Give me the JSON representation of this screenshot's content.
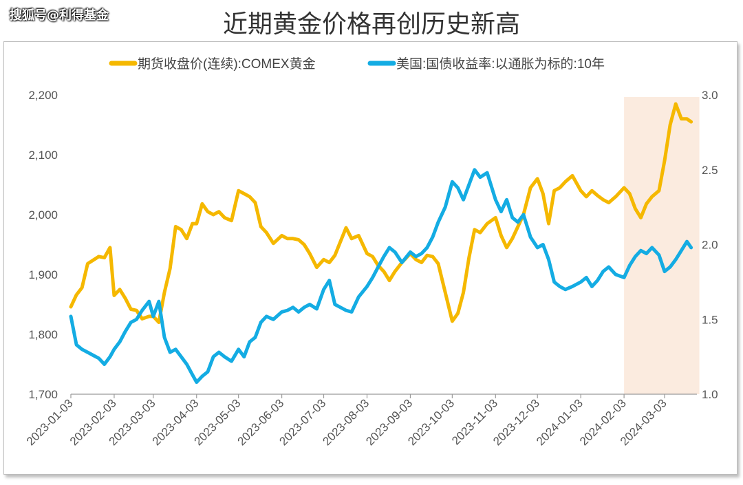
{
  "watermark": "搜狐号@利得基金",
  "title": "近期黄金价格再创历史新高",
  "colors": {
    "gold": "#F5B800",
    "yield": "#14ACE3",
    "highlight": "#FBEBDF",
    "axis": "#555555"
  },
  "chart_data": {
    "type": "line",
    "legend_position": "top",
    "grid": false,
    "x_ticks": [
      "2023-01-03",
      "2023-02-03",
      "2023-03-03",
      "2023-04-03",
      "2023-05-03",
      "2023-06-03",
      "2023-07-03",
      "2023-08-03",
      "2023-09-03",
      "2023-10-03",
      "2023-11-03",
      "2023-12-03",
      "2024-01-03",
      "2024-02-03",
      "2024-03-03"
    ],
    "y_left": {
      "ticks": [
        "1,700",
        "1,800",
        "1,900",
        "2,000",
        "2,100",
        "2,200"
      ],
      "lim": [
        1700,
        2200
      ]
    },
    "y_right": {
      "ticks": [
        "1.0",
        "1.5",
        "2.0",
        "2.5",
        "3.0"
      ],
      "lim": [
        1.0,
        3.0
      ]
    },
    "highlight_range": [
      "2024-02-03",
      "2024-03-22"
    ],
    "series": [
      {
        "name": "期货收盘价(连续):COMEX黄金",
        "axis": "left",
        "points": [
          [
            "2023-01-03",
            1846
          ],
          [
            "2023-01-07",
            1866
          ],
          [
            "2023-01-11",
            1878
          ],
          [
            "2023-01-15",
            1918
          ],
          [
            "2023-01-19",
            1924
          ],
          [
            "2023-01-23",
            1930
          ],
          [
            "2023-01-27",
            1928
          ],
          [
            "2023-01-31",
            1945
          ],
          [
            "2023-02-03",
            1865
          ],
          [
            "2023-02-07",
            1875
          ],
          [
            "2023-02-11",
            1860
          ],
          [
            "2023-02-15",
            1842
          ],
          [
            "2023-02-19",
            1840
          ],
          [
            "2023-02-23",
            1826
          ],
          [
            "2023-02-28",
            1830
          ],
          [
            "2023-03-03",
            1830
          ],
          [
            "2023-03-07",
            1820
          ],
          [
            "2023-03-11",
            1870
          ],
          [
            "2023-03-15",
            1910
          ],
          [
            "2023-03-19",
            1980
          ],
          [
            "2023-03-23",
            1975
          ],
          [
            "2023-03-27",
            1960
          ],
          [
            "2023-03-31",
            1985
          ],
          [
            "2023-04-03",
            1985
          ],
          [
            "2023-04-07",
            2018
          ],
          [
            "2023-04-11",
            2005
          ],
          [
            "2023-04-15",
            2000
          ],
          [
            "2023-04-19",
            2005
          ],
          [
            "2023-04-23",
            1995
          ],
          [
            "2023-04-28",
            1990
          ],
          [
            "2023-05-03",
            2040
          ],
          [
            "2023-05-07",
            2035
          ],
          [
            "2023-05-11",
            2030
          ],
          [
            "2023-05-15",
            2020
          ],
          [
            "2023-05-19",
            1980
          ],
          [
            "2023-05-23",
            1970
          ],
          [
            "2023-05-28",
            1952
          ],
          [
            "2023-06-03",
            1965
          ],
          [
            "2023-06-07",
            1960
          ],
          [
            "2023-06-11",
            1960
          ],
          [
            "2023-06-15",
            1958
          ],
          [
            "2023-06-19",
            1950
          ],
          [
            "2023-06-23",
            1935
          ],
          [
            "2023-06-28",
            1912
          ],
          [
            "2023-07-03",
            1925
          ],
          [
            "2023-07-07",
            1920
          ],
          [
            "2023-07-11",
            1932
          ],
          [
            "2023-07-15",
            1955
          ],
          [
            "2023-07-19",
            1978
          ],
          [
            "2023-07-23",
            1960
          ],
          [
            "2023-07-28",
            1965
          ],
          [
            "2023-08-03",
            1935
          ],
          [
            "2023-08-07",
            1930
          ],
          [
            "2023-08-11",
            1915
          ],
          [
            "2023-08-15",
            1905
          ],
          [
            "2023-08-19",
            1890
          ],
          [
            "2023-08-23",
            1905
          ],
          [
            "2023-08-28",
            1920
          ],
          [
            "2023-09-03",
            1935
          ],
          [
            "2023-09-07",
            1925
          ],
          [
            "2023-09-11",
            1920
          ],
          [
            "2023-09-15",
            1932
          ],
          [
            "2023-09-19",
            1930
          ],
          [
            "2023-09-23",
            1918
          ],
          [
            "2023-09-28",
            1870
          ],
          [
            "2023-10-03",
            1822
          ],
          [
            "2023-10-07",
            1835
          ],
          [
            "2023-10-11",
            1870
          ],
          [
            "2023-10-15",
            1928
          ],
          [
            "2023-10-19",
            1975
          ],
          [
            "2023-10-23",
            1970
          ],
          [
            "2023-10-28",
            1985
          ],
          [
            "2023-11-03",
            1995
          ],
          [
            "2023-11-07",
            1965
          ],
          [
            "2023-11-11",
            1945
          ],
          [
            "2023-11-15",
            1960
          ],
          [
            "2023-11-19",
            1980
          ],
          [
            "2023-11-23",
            2000
          ],
          [
            "2023-11-28",
            2045
          ],
          [
            "2023-12-03",
            2060
          ],
          [
            "2023-12-07",
            2035
          ],
          [
            "2023-12-11",
            1985
          ],
          [
            "2023-12-15",
            2040
          ],
          [
            "2023-12-19",
            2045
          ],
          [
            "2023-12-23",
            2055
          ],
          [
            "2023-12-28",
            2065
          ],
          [
            "2024-01-03",
            2040
          ],
          [
            "2024-01-07",
            2030
          ],
          [
            "2024-01-11",
            2040
          ],
          [
            "2024-01-15",
            2032
          ],
          [
            "2024-01-19",
            2025
          ],
          [
            "2024-01-23",
            2020
          ],
          [
            "2024-01-28",
            2030
          ],
          [
            "2024-02-03",
            2045
          ],
          [
            "2024-02-07",
            2035
          ],
          [
            "2024-02-11",
            2010
          ],
          [
            "2024-02-15",
            1995
          ],
          [
            "2024-02-19",
            2018
          ],
          [
            "2024-02-23",
            2030
          ],
          [
            "2024-02-28",
            2040
          ],
          [
            "2024-03-03",
            2090
          ],
          [
            "2024-03-07",
            2150
          ],
          [
            "2024-03-11",
            2185
          ],
          [
            "2024-03-15",
            2160
          ],
          [
            "2024-03-19",
            2160
          ],
          [
            "2024-03-22",
            2155
          ]
        ]
      },
      {
        "name": "美国:国债收益率:以通胀为标的:10年",
        "axis": "right",
        "points": [
          [
            "2023-01-03",
            1.52
          ],
          [
            "2023-01-07",
            1.33
          ],
          [
            "2023-01-11",
            1.3
          ],
          [
            "2023-01-15",
            1.28
          ],
          [
            "2023-01-19",
            1.26
          ],
          [
            "2023-01-23",
            1.24
          ],
          [
            "2023-01-27",
            1.2
          ],
          [
            "2023-01-31",
            1.25
          ],
          [
            "2023-02-03",
            1.3
          ],
          [
            "2023-02-07",
            1.35
          ],
          [
            "2023-02-11",
            1.42
          ],
          [
            "2023-02-15",
            1.48
          ],
          [
            "2023-02-19",
            1.5
          ],
          [
            "2023-02-23",
            1.56
          ],
          [
            "2023-02-28",
            1.62
          ],
          [
            "2023-03-03",
            1.52
          ],
          [
            "2023-03-07",
            1.62
          ],
          [
            "2023-03-11",
            1.38
          ],
          [
            "2023-03-15",
            1.28
          ],
          [
            "2023-03-19",
            1.3
          ],
          [
            "2023-03-23",
            1.25
          ],
          [
            "2023-03-27",
            1.2
          ],
          [
            "2023-03-31",
            1.13
          ],
          [
            "2023-04-03",
            1.08
          ],
          [
            "2023-04-07",
            1.12
          ],
          [
            "2023-04-11",
            1.15
          ],
          [
            "2023-04-15",
            1.25
          ],
          [
            "2023-04-19",
            1.28
          ],
          [
            "2023-04-23",
            1.25
          ],
          [
            "2023-04-28",
            1.22
          ],
          [
            "2023-05-03",
            1.3
          ],
          [
            "2023-05-07",
            1.25
          ],
          [
            "2023-05-11",
            1.35
          ],
          [
            "2023-05-15",
            1.38
          ],
          [
            "2023-05-19",
            1.48
          ],
          [
            "2023-05-23",
            1.52
          ],
          [
            "2023-05-28",
            1.5
          ],
          [
            "2023-06-03",
            1.55
          ],
          [
            "2023-06-07",
            1.56
          ],
          [
            "2023-06-11",
            1.58
          ],
          [
            "2023-06-15",
            1.55
          ],
          [
            "2023-06-19",
            1.58
          ],
          [
            "2023-06-23",
            1.6
          ],
          [
            "2023-06-28",
            1.57
          ],
          [
            "2023-07-03",
            1.7
          ],
          [
            "2023-07-07",
            1.76
          ],
          [
            "2023-07-11",
            1.6
          ],
          [
            "2023-07-15",
            1.58
          ],
          [
            "2023-07-19",
            1.56
          ],
          [
            "2023-07-23",
            1.55
          ],
          [
            "2023-07-28",
            1.65
          ],
          [
            "2023-08-03",
            1.72
          ],
          [
            "2023-08-07",
            1.78
          ],
          [
            "2023-08-11",
            1.85
          ],
          [
            "2023-08-15",
            1.92
          ],
          [
            "2023-08-19",
            1.98
          ],
          [
            "2023-08-23",
            1.95
          ],
          [
            "2023-08-28",
            1.88
          ],
          [
            "2023-09-03",
            1.95
          ],
          [
            "2023-09-07",
            1.92
          ],
          [
            "2023-09-11",
            1.94
          ],
          [
            "2023-09-15",
            1.98
          ],
          [
            "2023-09-19",
            2.05
          ],
          [
            "2023-09-23",
            2.15
          ],
          [
            "2023-09-28",
            2.25
          ],
          [
            "2023-10-03",
            2.42
          ],
          [
            "2023-10-07",
            2.38
          ],
          [
            "2023-10-11",
            2.3
          ],
          [
            "2023-10-15",
            2.4
          ],
          [
            "2023-10-19",
            2.5
          ],
          [
            "2023-10-23",
            2.45
          ],
          [
            "2023-10-28",
            2.48
          ],
          [
            "2023-11-03",
            2.3
          ],
          [
            "2023-11-07",
            2.22
          ],
          [
            "2023-11-11",
            2.3
          ],
          [
            "2023-11-15",
            2.18
          ],
          [
            "2023-11-19",
            2.15
          ],
          [
            "2023-11-23",
            2.2
          ],
          [
            "2023-11-28",
            2.05
          ],
          [
            "2023-12-03",
            1.98
          ],
          [
            "2023-12-07",
            2.0
          ],
          [
            "2023-12-11",
            1.9
          ],
          [
            "2023-12-15",
            1.75
          ],
          [
            "2023-12-19",
            1.72
          ],
          [
            "2023-12-23",
            1.7
          ],
          [
            "2023-12-28",
            1.72
          ],
          [
            "2024-01-03",
            1.75
          ],
          [
            "2024-01-07",
            1.78
          ],
          [
            "2024-01-11",
            1.72
          ],
          [
            "2024-01-15",
            1.76
          ],
          [
            "2024-01-19",
            1.82
          ],
          [
            "2024-01-23",
            1.85
          ],
          [
            "2024-01-28",
            1.8
          ],
          [
            "2024-02-03",
            1.78
          ],
          [
            "2024-02-07",
            1.86
          ],
          [
            "2024-02-11",
            1.92
          ],
          [
            "2024-02-15",
            1.96
          ],
          [
            "2024-02-19",
            1.94
          ],
          [
            "2024-02-23",
            1.98
          ],
          [
            "2024-02-28",
            1.93
          ],
          [
            "2024-03-03",
            1.82
          ],
          [
            "2024-03-07",
            1.85
          ],
          [
            "2024-03-11",
            1.9
          ],
          [
            "2024-03-15",
            1.96
          ],
          [
            "2024-03-19",
            2.02
          ],
          [
            "2024-03-22",
            1.98
          ]
        ]
      }
    ]
  }
}
